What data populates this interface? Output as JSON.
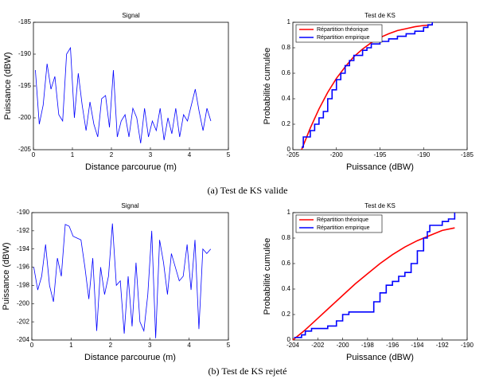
{
  "chart_data": [
    {
      "type": "line",
      "title": "Signal",
      "x_label": "Distance parcourue (m)",
      "y_label": "Puissance (dBW)",
      "x": [
        0.05,
        0.15,
        0.25,
        0.35,
        0.45,
        0.55,
        0.65,
        0.75,
        0.85,
        0.95,
        1.05,
        1.15,
        1.25,
        1.35,
        1.45,
        1.55,
        1.65,
        1.75,
        1.85,
        1.95,
        2.05,
        2.15,
        2.25,
        2.35,
        2.45,
        2.55,
        2.65,
        2.75,
        2.85,
        2.95,
        3.05,
        3.15,
        3.25,
        3.35,
        3.45,
        3.55,
        3.65,
        3.75,
        3.85,
        3.95,
        4.05,
        4.15,
        4.25,
        4.35,
        4.45,
        4.55
      ],
      "series": [
        {
          "color": "#0000ff",
          "values": [
            -192.5,
            -201,
            -198,
            -191.5,
            -195.5,
            -193.5,
            -199.5,
            -200.5,
            -190,
            -189,
            -200,
            -193,
            -198,
            -202,
            -197.5,
            -201,
            -203,
            -197,
            -196.5,
            -201.5,
            -192.5,
            -203,
            -200.5,
            -199.5,
            -203,
            -198.5,
            -200,
            -204,
            -198.5,
            -203,
            -200.5,
            -202,
            -198.5,
            -203.5,
            -200,
            -202.5,
            -198.5,
            -203,
            -199.5,
            -200.5,
            -198,
            -195.5,
            -199,
            -202,
            -198.5,
            -200.5
          ]
        }
      ],
      "xlim": [
        0,
        5
      ],
      "xticks": [
        0,
        1,
        2,
        3,
        4,
        5
      ],
      "ylim": [
        -205,
        -185
      ],
      "yticks": [
        -205,
        -200,
        -195,
        -190,
        -185
      ]
    },
    {
      "type": "ks",
      "title": "Test de KS",
      "x_label": "Puissance (dBW)",
      "y_label": "Probabilité cumulée",
      "legend": "upper left",
      "series": [
        {
          "name": "Répartition théorique",
          "color": "#ff0000",
          "x": [
            -204,
            -203,
            -202,
            -201,
            -200,
            -199,
            -198,
            -197,
            -196,
            -195,
            -194,
            -193,
            -192,
            -191,
            -190,
            -189
          ],
          "values": [
            0,
            0.17,
            0.32,
            0.45,
            0.56,
            0.65,
            0.73,
            0.79,
            0.84,
            0.88,
            0.91,
            0.935,
            0.95,
            0.965,
            0.975,
            0.98
          ]
        },
        {
          "name": "Répartition empirique",
          "color": "#0000ff",
          "x": [
            -204,
            -203.8,
            -203,
            -202.5,
            -202,
            -201.5,
            -201,
            -200.5,
            -200,
            -199.5,
            -199,
            -198.5,
            -198,
            -197,
            -196.5,
            -196,
            -195,
            -194,
            -193,
            -192,
            -191,
            -190,
            -189.5,
            -189
          ],
          "values": [
            0.02,
            0.1,
            0.15,
            0.2,
            0.25,
            0.3,
            0.4,
            0.47,
            0.55,
            0.6,
            0.66,
            0.7,
            0.74,
            0.78,
            0.8,
            0.83,
            0.85,
            0.87,
            0.89,
            0.91,
            0.93,
            0.96,
            0.98,
            1
          ]
        }
      ],
      "xlim": [
        -205,
        -185
      ],
      "xticks": [
        -205,
        -200,
        -195,
        -190,
        -185
      ],
      "ylim": [
        0,
        1
      ],
      "yticks": [
        0,
        0.2,
        0.4,
        0.6,
        0.8,
        1
      ]
    },
    {
      "type": "line",
      "title": "Signal",
      "x_label": "Distance parcourue (m)",
      "y_label": "Puissance (dBW)",
      "x": [
        0.05,
        0.15,
        0.25,
        0.35,
        0.45,
        0.55,
        0.65,
        0.75,
        0.85,
        0.95,
        1.05,
        1.15,
        1.25,
        1.35,
        1.45,
        1.55,
        1.65,
        1.75,
        1.85,
        1.95,
        2.05,
        2.15,
        2.25,
        2.35,
        2.45,
        2.55,
        2.65,
        2.75,
        2.85,
        2.95,
        3.05,
        3.15,
        3.25,
        3.35,
        3.45,
        3.55,
        3.65,
        3.75,
        3.85,
        3.95,
        4.05,
        4.15,
        4.25,
        4.35,
        4.45,
        4.55
      ],
      "series": [
        {
          "color": "#0000ff",
          "values": [
            -196,
            -198.5,
            -197,
            -193.5,
            -198,
            -199.8,
            -195,
            -197,
            -191.3,
            -191.5,
            -192.6,
            -192.8,
            -193,
            -196,
            -199.5,
            -195,
            -203,
            -196,
            -199,
            -197,
            -191.2,
            -198,
            -197.5,
            -203.3,
            -197,
            -202.5,
            -195.5,
            -202,
            -203,
            -199,
            -192,
            -203.8,
            -193,
            -195.5,
            -199,
            -194.5,
            -196,
            -197.5,
            -197,
            -193.5,
            -198.5,
            -193,
            -202.8,
            -194,
            -194.5,
            -194
          ]
        }
      ],
      "xlim": [
        0,
        5
      ],
      "xticks": [
        0,
        1,
        2,
        3,
        4,
        5
      ],
      "ylim": [
        -204,
        -190
      ],
      "yticks": [
        -204,
        -202,
        -200,
        -198,
        -196,
        -194,
        -192,
        -190
      ]
    },
    {
      "type": "ks",
      "title": "Test de KS",
      "x_label": "Puissance (dBW)",
      "y_label": "Probabilité cumulée",
      "legend": "upper left",
      "series": [
        {
          "name": "Répartition théorique",
          "color": "#ff0000",
          "x": [
            -204,
            -203,
            -202,
            -201,
            -200,
            -199,
            -198,
            -197,
            -196,
            -195,
            -194,
            -193,
            -192,
            -191
          ],
          "values": [
            0,
            0.08,
            0.17,
            0.26,
            0.35,
            0.44,
            0.52,
            0.6,
            0.67,
            0.73,
            0.78,
            0.82,
            0.86,
            0.88
          ]
        },
        {
          "name": "Répartition empirique",
          "color": "#0000ff",
          "x": [
            -203.9,
            -203.3,
            -203,
            -202.5,
            -201.2,
            -200.5,
            -200,
            -199.5,
            -197.5,
            -197,
            -196.5,
            -196,
            -195.5,
            -195,
            -194.5,
            -194,
            -193.5,
            -193.2,
            -193,
            -192,
            -191.5,
            -191
          ],
          "values": [
            0.02,
            0.04,
            0.07,
            0.09,
            0.11,
            0.15,
            0.2,
            0.22,
            0.3,
            0.37,
            0.43,
            0.46,
            0.5,
            0.53,
            0.6,
            0.7,
            0.8,
            0.85,
            0.9,
            0.93,
            0.95,
            1
          ]
        }
      ],
      "xlim": [
        -204,
        -190
      ],
      "xticks": [
        -204,
        -202,
        -200,
        -198,
        -196,
        -194,
        -192,
        -190
      ],
      "ylim": [
        0,
        1
      ],
      "yticks": [
        0,
        0.2,
        0.4,
        0.6,
        0.8,
        1
      ]
    }
  ],
  "captions": [
    "(a)  Test de KS valide",
    "(b)  Test de KS rejeté"
  ]
}
